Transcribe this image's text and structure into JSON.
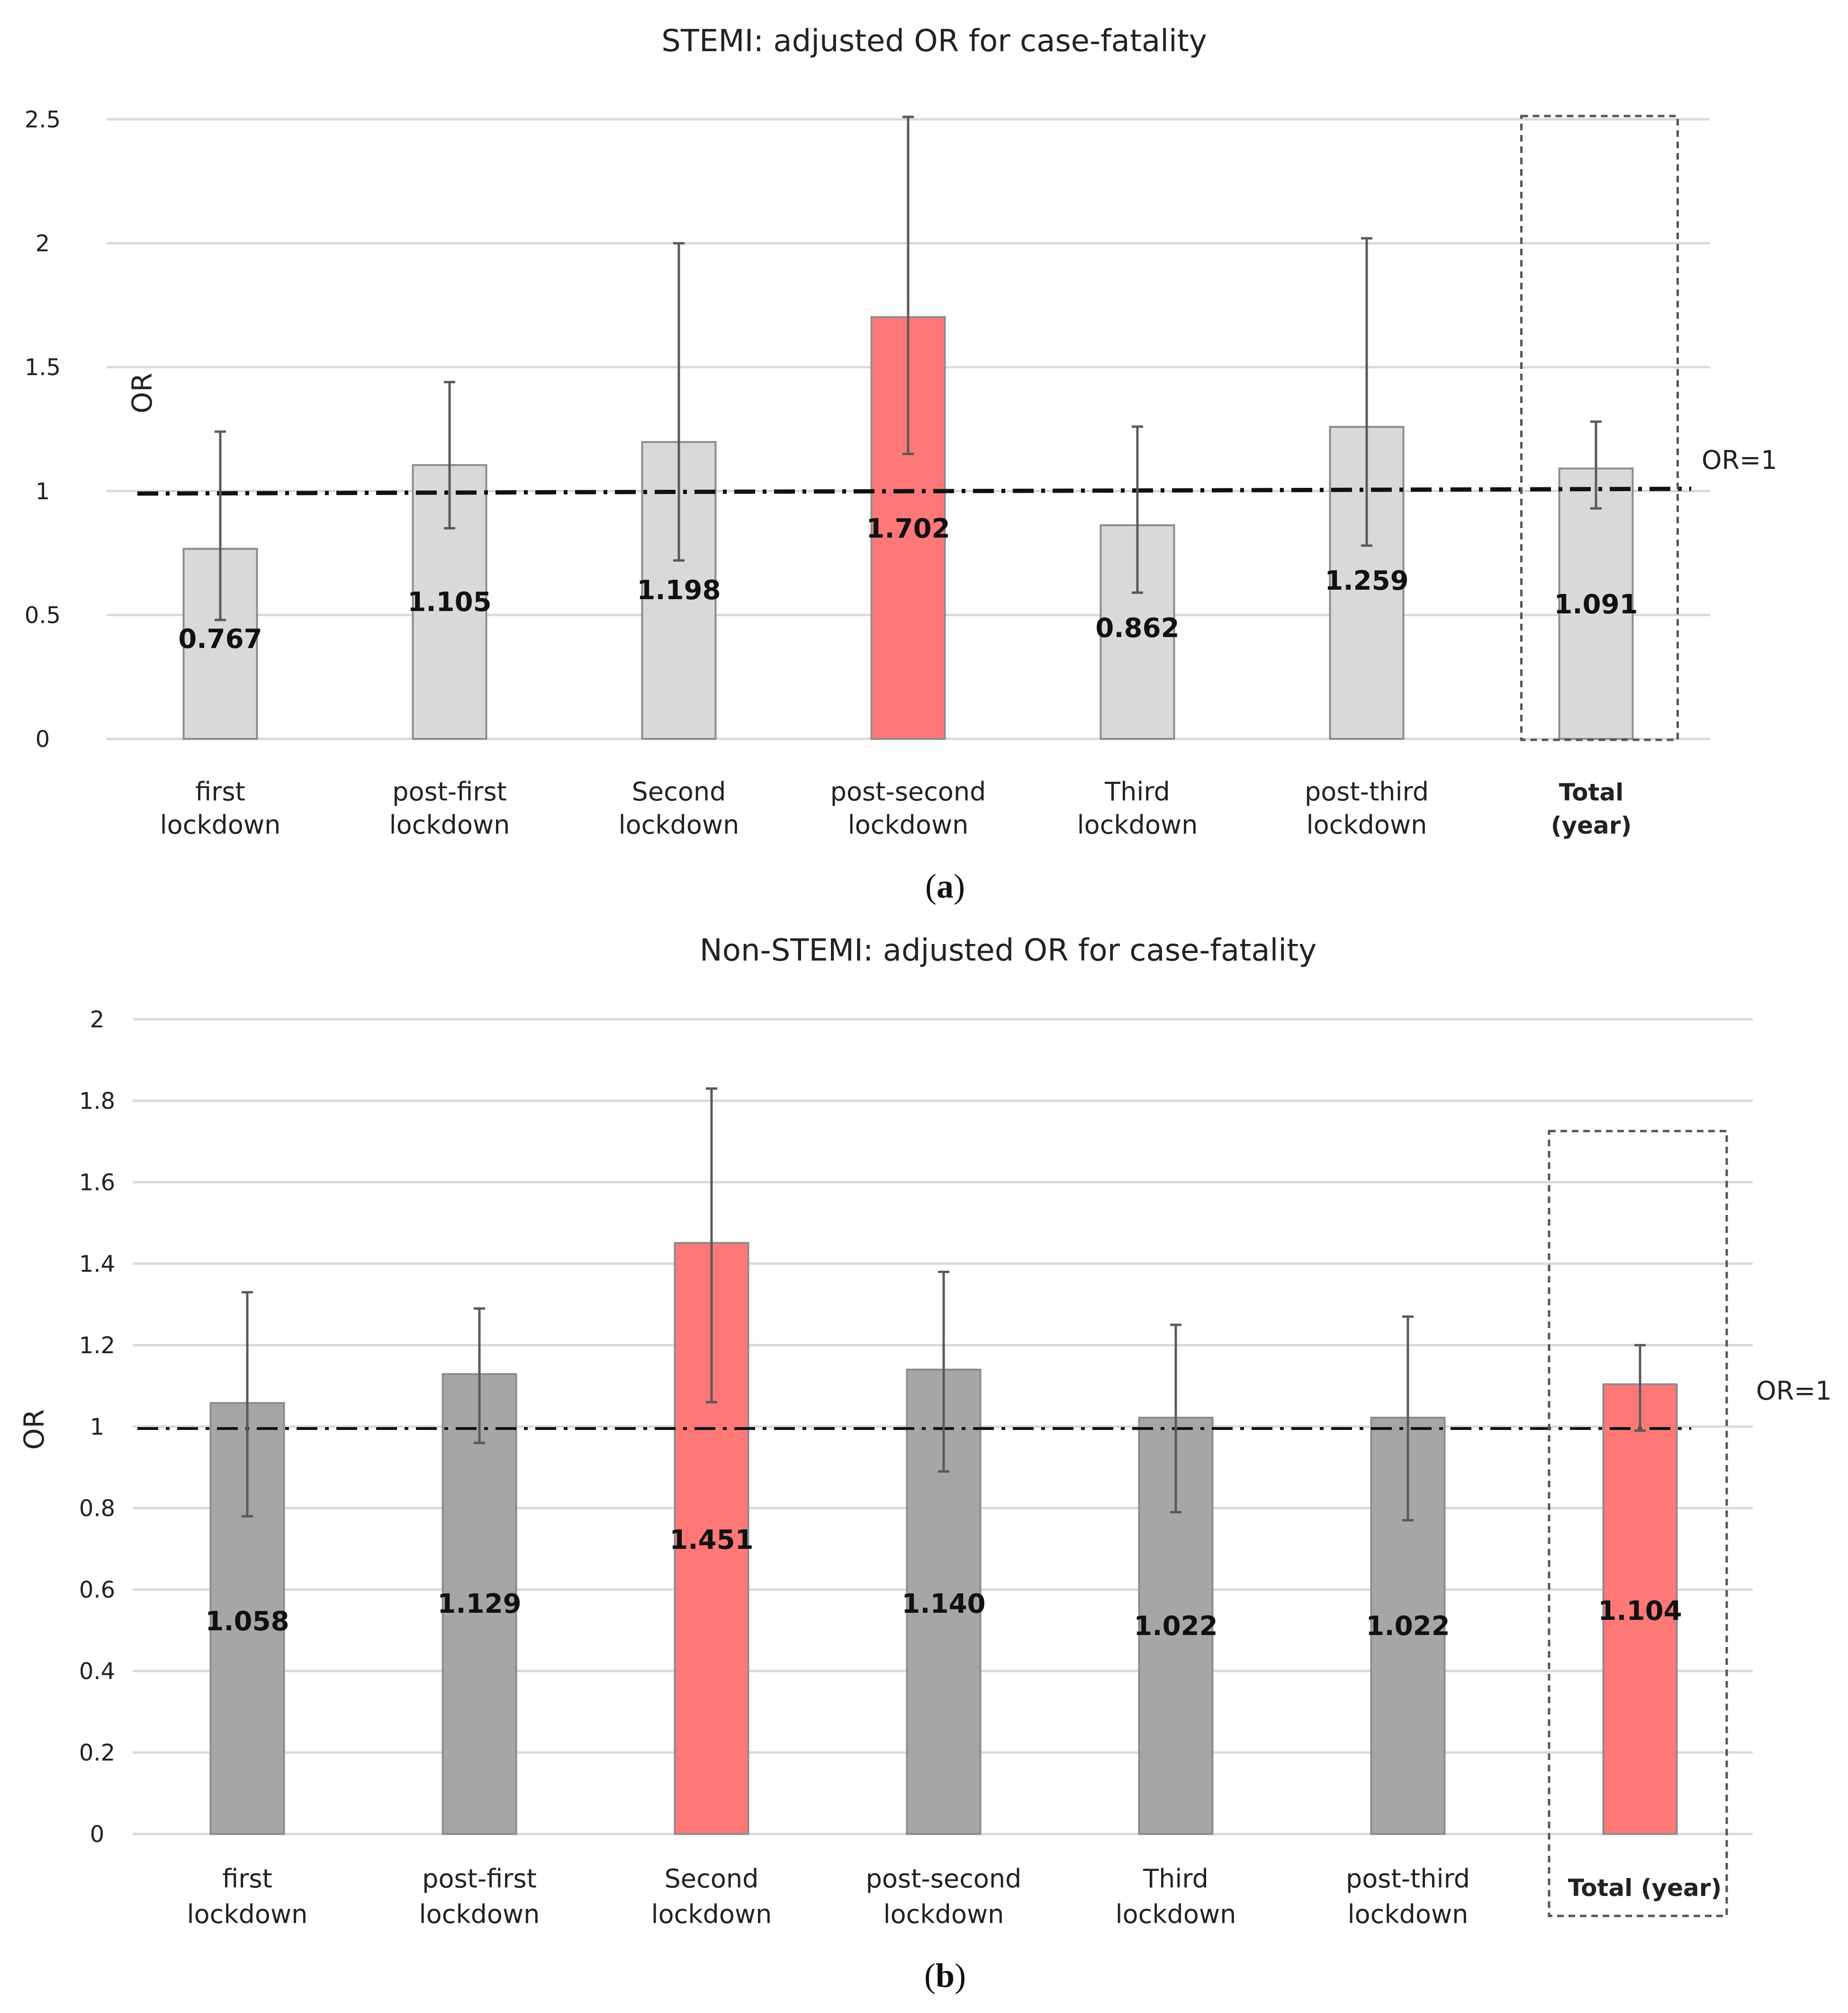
{
  "chart_data": [
    {
      "type": "bar",
      "title": "STEMI: adjusted   OR for case-fatality",
      "ylabel": "OR",
      "ylim": [
        0,
        2.5
      ],
      "yticks": [
        "0",
        "0.5",
        "1",
        "1.5",
        "2",
        "2.5"
      ],
      "ytick_values": [
        0,
        0.5,
        1,
        1.5,
        2,
        2.5
      ],
      "categories": [
        [
          "first",
          "lockdown"
        ],
        [
          "post-first",
          "lockdown"
        ],
        [
          "Second",
          "lockdown"
        ],
        [
          "post-second",
          "lockdown"
        ],
        [
          "Third",
          "lockdown"
        ],
        [
          "post-third",
          "lockdown"
        ],
        [
          "Total",
          "(year)"
        ]
      ],
      "values": [
        0.767,
        1.105,
        1.198,
        1.702,
        0.862,
        1.259,
        1.091
      ],
      "value_labels": [
        "0.767",
        "1.105",
        "1.198",
        "1.702",
        "0.862",
        "1.259",
        "1.091"
      ],
      "ci_low": [
        0.48,
        0.85,
        0.72,
        1.15,
        0.59,
        0.78,
        0.93
      ],
      "ci_high": [
        1.24,
        1.44,
        2.0,
        2.51,
        1.26,
        2.02,
        1.28
      ],
      "highlighted": [
        false,
        false,
        false,
        true,
        false,
        false,
        false
      ],
      "bold_category": [
        false,
        false,
        false,
        false,
        false,
        false,
        true
      ],
      "boxed_index": 6,
      "reference": {
        "value": 1,
        "label": "OR=1"
      },
      "colors": {
        "bar": "#d9d9d9",
        "highlight": "#fe7878",
        "edge": "#8c8c8c"
      },
      "grid": true,
      "caption": "a"
    },
    {
      "type": "bar",
      "title": "Non-STEMI: adjusted   OR for case-fatality",
      "ylabel": "OR",
      "ylim": [
        0,
        2
      ],
      "yticks": [
        "0",
        "0.2",
        "0.4",
        "0.6",
        "0.8",
        "1",
        "1.2",
        "1.4",
        "1.6",
        "1.8",
        "2"
      ],
      "ytick_values": [
        0,
        0.2,
        0.4,
        0.6,
        0.8,
        1,
        1.2,
        1.4,
        1.6,
        1.8,
        2
      ],
      "categories": [
        [
          "first",
          "lockdown"
        ],
        [
          "post-first",
          "lockdown"
        ],
        [
          "Second",
          "lockdown"
        ],
        [
          "post-second",
          "lockdown"
        ],
        [
          "Third",
          "lockdown"
        ],
        [
          "post-third",
          "lockdown"
        ],
        [
          "Total (year)"
        ]
      ],
      "values": [
        1.058,
        1.129,
        1.451,
        1.14,
        1.022,
        1.022,
        1.104
      ],
      "value_labels": [
        "1.058",
        "1.129",
        "1.451",
        "1.140",
        "1.022",
        "1.022",
        "1.104"
      ],
      "ci_low": [
        0.78,
        0.96,
        1.06,
        0.89,
        0.79,
        0.77,
        0.99
      ],
      "ci_high": [
        1.33,
        1.29,
        1.83,
        1.38,
        1.25,
        1.27,
        1.2
      ],
      "highlighted": [
        false,
        false,
        true,
        false,
        false,
        false,
        true
      ],
      "bold_category": [
        false,
        false,
        false,
        false,
        false,
        false,
        true
      ],
      "boxed_index": 6,
      "reference": {
        "value": 1,
        "label": "OR=1"
      },
      "colors": {
        "bar": "#a6a6a6",
        "highlight": "#fe7878",
        "edge": "#8c8c8c"
      },
      "grid": true,
      "caption": "b"
    }
  ]
}
